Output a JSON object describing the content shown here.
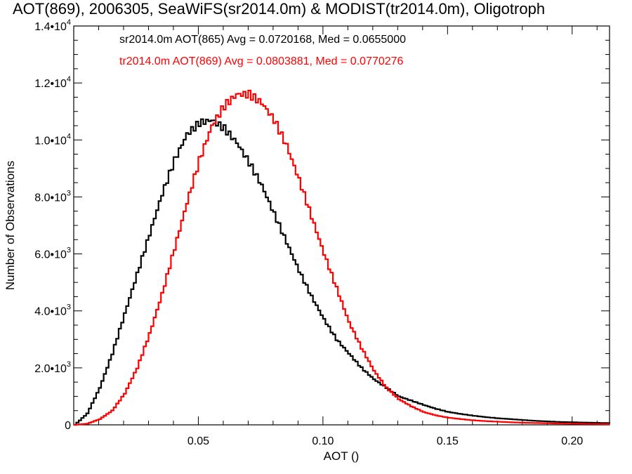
{
  "chart_data": {
    "type": "line",
    "title": "AOT(869), 2006305, SeaWiFS(sr2014.0m) & MODIST(tr2014.0m), Oligotroph",
    "xlabel": "AOT ()",
    "ylabel": "Number of Observations",
    "xlim": [
      0.0,
      0.215
    ],
    "ylim": [
      0,
      14000
    ],
    "xticks": [
      {
        "value": 0.05,
        "label": "0.05"
      },
      {
        "value": 0.1,
        "label": "0.10"
      },
      {
        "value": 0.15,
        "label": "0.15"
      },
      {
        "value": 0.2,
        "label": "0.20"
      }
    ],
    "yticks": [
      {
        "value": 0,
        "mant": "0",
        "exp": ""
      },
      {
        "value": 2000,
        "mant": "2.0•10",
        "exp": "3"
      },
      {
        "value": 4000,
        "mant": "4.0•10",
        "exp": "3"
      },
      {
        "value": 6000,
        "mant": "6.0•10",
        "exp": "3"
      },
      {
        "value": 8000,
        "mant": "8.0•10",
        "exp": "3"
      },
      {
        "value": 10000,
        "mant": "1.0•10",
        "exp": "4"
      },
      {
        "value": 12000,
        "mant": "1.2•10",
        "exp": "4"
      },
      {
        "value": 14000,
        "mant": "1.4•10",
        "exp": "4"
      }
    ],
    "grid": false,
    "legend_position": "top-left",
    "series": [
      {
        "name": "sr2014.0m AOT(865)",
        "label": "sr2014.0m AOT(865) Avg = 0.0720168, Med = 0.0655000",
        "color": "#000000",
        "x": [
          0.0,
          0.005,
          0.01,
          0.015,
          0.02,
          0.025,
          0.03,
          0.035,
          0.04,
          0.045,
          0.05,
          0.055,
          0.06,
          0.065,
          0.07,
          0.075,
          0.08,
          0.085,
          0.09,
          0.095,
          0.1,
          0.105,
          0.11,
          0.115,
          0.12,
          0.125,
          0.13,
          0.135,
          0.14,
          0.145,
          0.15,
          0.155,
          0.16,
          0.165,
          0.17,
          0.175,
          0.18,
          0.185,
          0.19,
          0.195,
          0.2,
          0.205,
          0.21,
          0.215
        ],
        "y": [
          0,
          400,
          1300,
          2500,
          3900,
          5300,
          6700,
          8100,
          9300,
          10200,
          10600,
          10700,
          10400,
          9900,
          9200,
          8400,
          7400,
          6400,
          5400,
          4500,
          3700,
          3000,
          2500,
          2000,
          1600,
          1300,
          1000,
          850,
          700,
          560,
          450,
          380,
          320,
          270,
          230,
          200,
          170,
          140,
          120,
          100,
          90,
          80,
          70,
          60
        ]
      },
      {
        "name": "tr2014.0m AOT(869)",
        "label": "tr2014.0m AOT(869) Avg = 0.0803881, Med = 0.0770276",
        "color": "#ff0000",
        "x": [
          0.0,
          0.005,
          0.01,
          0.015,
          0.02,
          0.025,
          0.03,
          0.035,
          0.04,
          0.045,
          0.05,
          0.055,
          0.06,
          0.065,
          0.07,
          0.075,
          0.08,
          0.085,
          0.09,
          0.095,
          0.1,
          0.105,
          0.11,
          0.115,
          0.12,
          0.125,
          0.13,
          0.135,
          0.14,
          0.145,
          0.15,
          0.155,
          0.16,
          0.165,
          0.17,
          0.175,
          0.18,
          0.185,
          0.19,
          0.195,
          0.2,
          0.205,
          0.21,
          0.215
        ],
        "y": [
          0,
          40,
          200,
          500,
          1100,
          2000,
          3200,
          4600,
          6200,
          7800,
          9300,
          10500,
          11200,
          11600,
          11600,
          11300,
          10700,
          9800,
          8600,
          7300,
          6000,
          4800,
          3600,
          2700,
          1900,
          1300,
          900,
          650,
          450,
          330,
          250,
          200,
          160,
          130,
          110,
          90,
          75,
          65,
          55,
          45,
          40,
          35,
          30,
          25
        ]
      }
    ]
  }
}
